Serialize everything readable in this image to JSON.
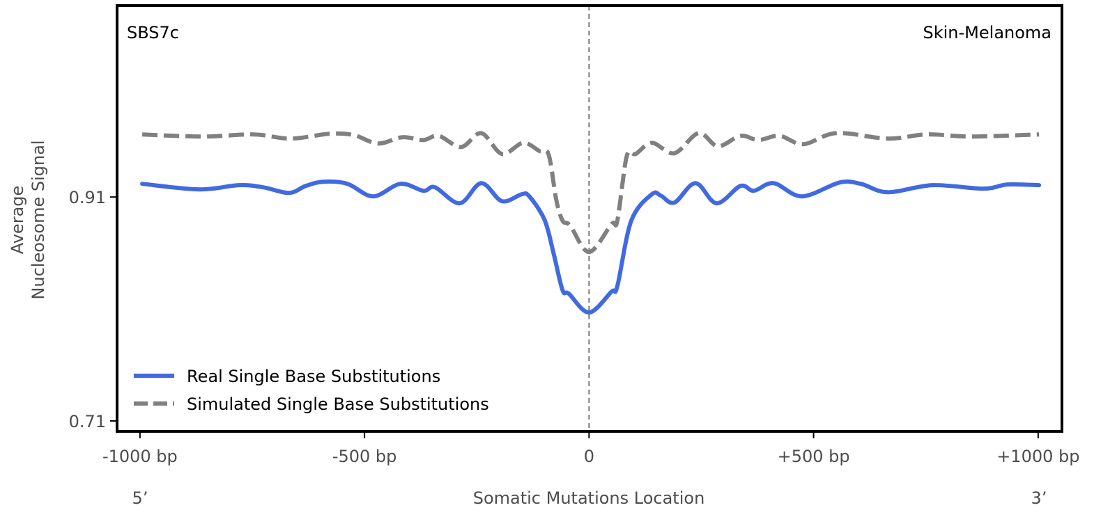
{
  "chart_data": {
    "type": "line",
    "title_left": "SBS7c",
    "title_right": "Skin-Melanoma",
    "xlabel": "Somatic Mutations Location",
    "xlabel_left_end": "5’",
    "xlabel_right_end": "3’",
    "ylabel_lines": [
      "Average",
      "Nucleosome Signal"
    ],
    "xlim": [
      -1051,
      1053
    ],
    "ylim": [
      0.7007,
      1.081
    ],
    "x_ticks": [
      {
        "value": -1000,
        "label": "-1000 bp"
      },
      {
        "value": -500,
        "label": "-500 bp"
      },
      {
        "value": 0,
        "label": "0"
      },
      {
        "value": 500,
        "label": "+500 bp"
      },
      {
        "value": 1000,
        "label": "+1000 bp"
      }
    ],
    "y_ticks": [
      {
        "value": 0.91,
        "label": "0.91"
      },
      {
        "value": 0.71,
        "label": "0.71"
      }
    ],
    "vline_at": 0,
    "legend_position": "lower-left",
    "series": [
      {
        "name": "Real Single Base Substitutions",
        "color": "#4169e1",
        "style": "solid",
        "x": [
          -995,
          -868,
          -780,
          -726,
          -668,
          -631,
          -591,
          -538,
          -481,
          -420,
          -369,
          -343,
          -288,
          -240,
          -194,
          -150,
          -133,
          -99,
          -79,
          -59,
          -45,
          0,
          50,
          63,
          94,
          140,
          160,
          190,
          237,
          284,
          337,
          367,
          411,
          474,
          558,
          605,
          665,
          765,
          878,
          932,
          1002
        ],
        "y": [
          0.9218,
          0.9168,
          0.9206,
          0.9187,
          0.9137,
          0.9199,
          0.9237,
          0.9218,
          0.9106,
          0.9218,
          0.9156,
          0.9187,
          0.9044,
          0.9224,
          0.9063,
          0.9125,
          0.9106,
          0.8895,
          0.8597,
          0.8268,
          0.8237,
          0.8069,
          0.8255,
          0.8305,
          0.8889,
          0.9125,
          0.9112,
          0.905,
          0.9224,
          0.9044,
          0.9199,
          0.9156,
          0.9224,
          0.9106,
          0.923,
          0.9218,
          0.9143,
          0.9206,
          0.9175,
          0.9212,
          0.9206
        ]
      },
      {
        "name": "Simulated Single Base Substitutions",
        "color": "#808080",
        "style": "dashed",
        "x": [
          -995,
          -860,
          -746,
          -665,
          -578,
          -524,
          -470,
          -416,
          -369,
          -335,
          -285,
          -240,
          -194,
          -147,
          -110,
          -90,
          -73,
          -59,
          -42,
          0,
          50,
          63,
          84,
          104,
          140,
          190,
          244,
          287,
          337,
          377,
          424,
          477,
          551,
          665,
          752,
          852,
          1002
        ],
        "y": [
          0.9659,
          0.964,
          0.9659,
          0.9622,
          0.9665,
          0.9653,
          0.9578,
          0.9634,
          0.9609,
          0.9647,
          0.9547,
          0.9671,
          0.9485,
          0.9584,
          0.951,
          0.9479,
          0.9075,
          0.8889,
          0.8845,
          0.8609,
          0.8858,
          0.8889,
          0.9466,
          0.9485,
          0.9584,
          0.9491,
          0.9671,
          0.9553,
          0.9647,
          0.9609,
          0.9647,
          0.9572,
          0.9671,
          0.9622,
          0.9659,
          0.964,
          0.9659
        ]
      }
    ]
  }
}
